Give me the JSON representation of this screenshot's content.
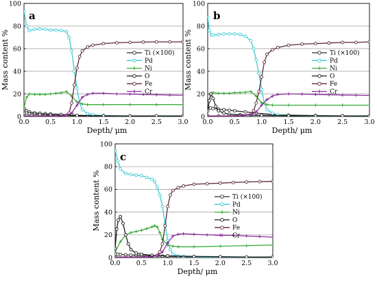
{
  "chart_data": [
    {
      "type": "line",
      "panel_label": "a",
      "xlabel": "Depth/ μm",
      "ylabel": "Mass content %",
      "xlim": [
        0,
        3.0
      ],
      "ylim": [
        0,
        100
      ],
      "xticks": [
        "0.0",
        "0.5",
        "1.0",
        "1.5",
        "2.0",
        "2.5",
        "3.0"
      ],
      "yticks": [
        "0",
        "20",
        "40",
        "60",
        "80",
        "100"
      ],
      "grid": "horizontal",
      "legend_position": "right",
      "series": [
        {
          "name": "Ti (×100)",
          "color": "#2b2b2b",
          "marker": "circle",
          "x": [
            0,
            0.05,
            0.1,
            0.2,
            0.3,
            0.4,
            0.5,
            0.7,
            0.9,
            1.2,
            1.5,
            2.0,
            2.5,
            3.0
          ],
          "y": [
            7,
            5,
            4,
            3.2,
            2.8,
            2.5,
            2.2,
            1.8,
            1.3,
            0.8,
            0.5,
            0.3,
            0.2,
            0.1
          ]
        },
        {
          "name": "Pd",
          "color": "#3fc9d4",
          "marker": "circle",
          "x": [
            0,
            0.05,
            0.1,
            0.2,
            0.3,
            0.4,
            0.5,
            0.6,
            0.7,
            0.8,
            0.85,
            0.9,
            0.95,
            1.0,
            1.05,
            1.1,
            1.2,
            1.3,
            1.5,
            2.0,
            2.5,
            3.0
          ],
          "y": [
            93,
            80,
            76,
            77,
            77.5,
            77,
            76.5,
            76.5,
            76,
            75,
            70,
            58,
            40,
            25,
            12,
            6,
            2.5,
            1.5,
            0.8,
            0.4,
            0.2,
            0.1
          ]
        },
        {
          "name": "Ni",
          "color": "#3aab3a",
          "marker": "cross",
          "x": [
            0,
            0.05,
            0.1,
            0.2,
            0.3,
            0.4,
            0.5,
            0.6,
            0.7,
            0.8,
            0.9,
            1.0,
            1.1,
            1.2,
            1.5,
            2.0,
            2.5,
            3.0
          ],
          "y": [
            8,
            17,
            20,
            19.5,
            19.5,
            19.5,
            20,
            20.5,
            21,
            22,
            18,
            13,
            11,
            10.5,
            10.5,
            10.5,
            10.5,
            10.5
          ]
        },
        {
          "name": "O",
          "color": "#1a1a1a",
          "marker": "circle",
          "x": [
            0,
            0.05,
            0.1,
            0.2,
            0.3,
            0.4,
            0.5,
            0.6,
            0.8,
            1.0,
            1.5,
            2.0,
            2.5,
            3.0
          ],
          "y": [
            3,
            3,
            2.5,
            2,
            1.6,
            1.4,
            1.2,
            1.1,
            1.0,
            0.8,
            0.6,
            0.5,
            0.5,
            0.5
          ]
        },
        {
          "name": "Fe",
          "color": "#5a2a36",
          "marker": "circle",
          "x": [
            0,
            0.2,
            0.4,
            0.6,
            0.8,
            0.85,
            0.9,
            0.95,
            1.0,
            1.05,
            1.1,
            1.2,
            1.3,
            1.5,
            1.75,
            2.0,
            2.25,
            2.5,
            2.75,
            3.0
          ],
          "y": [
            0.5,
            0.5,
            0.5,
            0.5,
            1,
            3,
            12,
            28,
            43,
            53,
            58,
            61.5,
            63,
            64.5,
            65.2,
            65.5,
            65.8,
            66,
            66,
            66
          ]
        },
        {
          "name": "Cr",
          "color": "#8a2e9a",
          "marker": "cross",
          "x": [
            0,
            0.2,
            0.4,
            0.6,
            0.8,
            0.9,
            1.0,
            1.1,
            1.2,
            1.3,
            1.5,
            1.75,
            2.0,
            2.25,
            2.5,
            2.75,
            3.0
          ],
          "y": [
            0.3,
            0.3,
            0.3,
            0.5,
            1,
            3,
            10,
            17,
            19.5,
            20.5,
            20.5,
            20,
            19.8,
            19.5,
            19.2,
            19,
            18.8
          ]
        }
      ]
    },
    {
      "type": "line",
      "panel_label": "b",
      "xlabel": "Depth/ μm",
      "ylabel": "Mass content %",
      "xlim": [
        0,
        3.0
      ],
      "ylim": [
        0,
        100
      ],
      "xticks": [
        "0.0",
        "0.5",
        "1.0",
        "1.5",
        "2.0",
        "2.5",
        "3.0"
      ],
      "yticks": [
        "0",
        "20",
        "40",
        "60",
        "80",
        "100"
      ],
      "grid": "horizontal",
      "legend_position": "right",
      "series": [
        {
          "name": "Ti (×100)",
          "color": "#2b2b2b",
          "marker": "circle",
          "x": [
            0,
            0.05,
            0.1,
            0.2,
            0.3,
            0.4,
            0.5,
            0.7,
            0.9,
            1.2,
            1.5,
            2.0,
            2.5,
            3.0
          ],
          "y": [
            8,
            7.5,
            7,
            6.5,
            6,
            5.5,
            5,
            4,
            3,
            1.8,
            1.2,
            0.8,
            0.5,
            0.3
          ]
        },
        {
          "name": "Pd",
          "color": "#3fc9d4",
          "marker": "circle",
          "x": [
            0,
            0.03,
            0.07,
            0.1,
            0.2,
            0.3,
            0.4,
            0.5,
            0.6,
            0.7,
            0.8,
            0.85,
            0.9,
            0.95,
            1.0,
            1.05,
            1.1,
            1.2,
            1.3,
            1.5,
            2.0,
            2.5,
            3.0
          ],
          "y": [
            88,
            76,
            72,
            72,
            72.5,
            73,
            73,
            73,
            72.5,
            71,
            67,
            60,
            50,
            38,
            24,
            12,
            6,
            3,
            1.5,
            0.8,
            0.4,
            0.2,
            0.1
          ]
        },
        {
          "name": "Ni",
          "color": "#3aab3a",
          "marker": "cross",
          "x": [
            0,
            0.05,
            0.1,
            0.2,
            0.3,
            0.4,
            0.5,
            0.6,
            0.7,
            0.8,
            0.9,
            1.0,
            1.1,
            1.2,
            1.5,
            2.0,
            2.5,
            3.0
          ],
          "y": [
            6,
            19,
            21,
            20.5,
            20.5,
            20.5,
            21,
            21,
            21.5,
            22,
            18,
            12,
            10.5,
            10,
            10,
            10,
            10,
            10
          ]
        },
        {
          "name": "O",
          "color": "#1a1a1a",
          "marker": "circle",
          "x": [
            0,
            0.03,
            0.06,
            0.1,
            0.15,
            0.2,
            0.3,
            0.4,
            0.6,
            0.8,
            1.0,
            1.5,
            2.0,
            2.5,
            3.0
          ],
          "y": [
            5,
            14,
            20,
            16,
            9,
            5,
            3,
            2,
            1.5,
            1.2,
            1,
            0.8,
            0.6,
            0.5,
            0.5
          ]
        },
        {
          "name": "Fe",
          "color": "#5a2a36",
          "marker": "circle",
          "x": [
            0,
            0.2,
            0.4,
            0.6,
            0.8,
            0.85,
            0.9,
            0.95,
            1.0,
            1.05,
            1.1,
            1.2,
            1.3,
            1.5,
            1.75,
            2.0,
            2.25,
            2.5,
            2.75,
            3.0
          ],
          "y": [
            0.5,
            0.5,
            0.5,
            0.8,
            2,
            5,
            12,
            22,
            35,
            48,
            55,
            59,
            61,
            63,
            64,
            64.5,
            65,
            65.5,
            65.5,
            66
          ]
        },
        {
          "name": "Cr",
          "color": "#8a2e9a",
          "marker": "cross",
          "x": [
            0,
            0.2,
            0.4,
            0.6,
            0.8,
            0.9,
            1.0,
            1.1,
            1.2,
            1.3,
            1.5,
            1.75,
            2.0,
            2.25,
            2.5,
            2.75,
            3.0
          ],
          "y": [
            0.3,
            0.3,
            0.3,
            0.5,
            1.5,
            4,
            10,
            15,
            18,
            19.5,
            20,
            19.8,
            19.5,
            19.2,
            19,
            18.8,
            18.5
          ]
        }
      ]
    },
    {
      "type": "line",
      "panel_label": "c",
      "xlabel": "Depth/ μm",
      "ylabel": "Mass content %",
      "xlim": [
        0,
        3.0
      ],
      "ylim": [
        0,
        100
      ],
      "xticks": [
        "0.0",
        "0.5",
        "1.0",
        "1.5",
        "2.0",
        "2.5",
        "3.0"
      ],
      "yticks": [
        "0",
        "20",
        "40",
        "60",
        "80",
        "100"
      ],
      "grid": "horizontal",
      "legend_position": "right",
      "series": [
        {
          "name": "Ti (×100)",
          "color": "#2b2b2b",
          "marker": "circle",
          "x": [
            0,
            0.05,
            0.1,
            0.2,
            0.3,
            0.4,
            0.5,
            0.7,
            0.9,
            1.2,
            1.5,
            2.0,
            2.5,
            3.0
          ],
          "y": [
            3,
            3,
            2.8,
            2.5,
            2.2,
            2,
            1.8,
            1.5,
            1.2,
            1,
            0.8,
            0.5,
            0.3,
            0.2
          ]
        },
        {
          "name": "Pd",
          "color": "#3fc9d4",
          "marker": "circle",
          "x": [
            0,
            0.05,
            0.1,
            0.2,
            0.3,
            0.4,
            0.5,
            0.6,
            0.7,
            0.75,
            0.8,
            0.85,
            0.9,
            0.95,
            1.0,
            1.05,
            1.1,
            1.2,
            1.3,
            1.5,
            2.0,
            2.5,
            3.0
          ],
          "y": [
            94,
            85,
            78,
            74,
            73,
            72.5,
            72,
            70.5,
            69,
            67,
            62,
            55,
            45,
            30,
            15,
            7,
            3,
            1.5,
            1,
            0.5,
            0.3,
            0.2,
            0.1
          ]
        },
        {
          "name": "Ni",
          "color": "#3aab3a",
          "marker": "cross",
          "x": [
            0,
            0.1,
            0.2,
            0.3,
            0.4,
            0.5,
            0.6,
            0.7,
            0.75,
            0.8,
            0.85,
            0.9,
            1.0,
            1.1,
            1.2,
            1.5,
            2.0,
            2.5,
            3.0
          ],
          "y": [
            5,
            14,
            20,
            22,
            23,
            24,
            25.5,
            27,
            28,
            27,
            22,
            16,
            11,
            10,
            9.5,
            9.5,
            10,
            10.5,
            11
          ]
        },
        {
          "name": "O",
          "color": "#1a1a1a",
          "marker": "circle",
          "x": [
            0,
            0.03,
            0.06,
            0.1,
            0.15,
            0.2,
            0.25,
            0.3,
            0.4,
            0.5,
            0.7,
            1.0,
            1.5,
            2.0,
            2.5,
            3.0
          ],
          "y": [
            8,
            25,
            33,
            36,
            30,
            20,
            12,
            7,
            4,
            3,
            2,
            1.5,
            1,
            0.8,
            0.5,
            0.5
          ]
        },
        {
          "name": "Fe",
          "color": "#5a2a36",
          "marker": "circle",
          "x": [
            0,
            0.2,
            0.4,
            0.6,
            0.8,
            0.85,
            0.9,
            0.95,
            1.0,
            1.05,
            1.1,
            1.2,
            1.3,
            1.5,
            1.75,
            2.0,
            2.25,
            2.5,
            2.75,
            3.0
          ],
          "y": [
            0.5,
            0.5,
            0.5,
            0.8,
            2,
            5,
            12,
            28,
            45,
            55,
            59,
            61.5,
            63,
            64.5,
            65,
            65.5,
            66,
            66.5,
            66.8,
            67
          ]
        },
        {
          "name": "Cr",
          "color": "#8a2e9a",
          "marker": "cross",
          "x": [
            0,
            0.2,
            0.4,
            0.6,
            0.8,
            0.9,
            1.0,
            1.1,
            1.2,
            1.3,
            1.5,
            1.75,
            2.0,
            2.25,
            2.5,
            2.75,
            3.0
          ],
          "y": [
            0.3,
            0.3,
            0.3,
            0.5,
            1.5,
            5,
            13,
            19,
            20.5,
            21,
            20.5,
            20,
            19.8,
            19.5,
            19,
            18.5,
            18
          ]
        }
      ]
    }
  ]
}
